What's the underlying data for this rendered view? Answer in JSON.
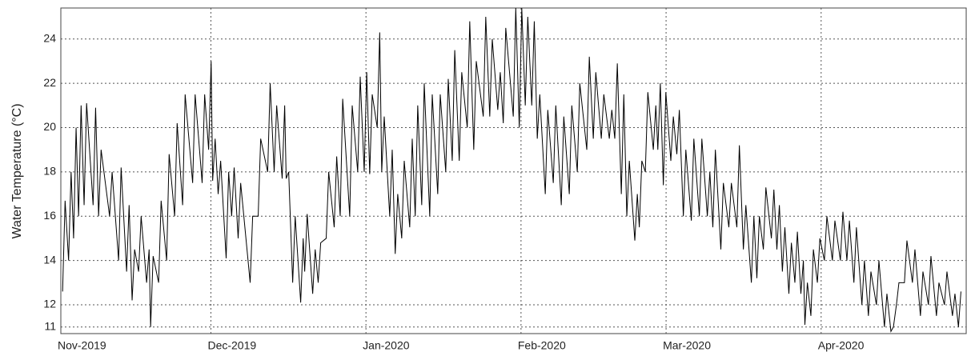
{
  "chart_data": {
    "type": "line",
    "y_label": "Water Temperature (°C)",
    "xlim": [
      0,
      181
    ],
    "xticks": [
      {
        "value": 0,
        "label": "Nov-2019"
      },
      {
        "value": 30,
        "label": "Dec-2019"
      },
      {
        "value": 61,
        "label": "Jan-2020"
      },
      {
        "value": 92,
        "label": "Feb-2020"
      },
      {
        "value": 121,
        "label": "Mar-2020"
      },
      {
        "value": 152,
        "label": "Apr-2020"
      }
    ],
    "ylim": [
      10.7,
      25.4
    ],
    "yticks": [
      11,
      12,
      14,
      16,
      18,
      20,
      22,
      24
    ],
    "grid": true,
    "x": [
      0.35,
      0.85,
      1.55,
      2.05,
      2.55,
      3.05,
      3.55,
      4.05,
      4.65,
      5.15,
      6.45,
      6.95,
      7.55,
      8.05,
      9.75,
      10.25,
      11.55,
      12.05,
      13.15,
      13.65,
      14.25,
      14.75,
      15.55,
      16.05,
      17.15,
      17.65,
      17.95,
      18.45,
      19.55,
      20.05,
      21.15,
      21.65,
      22.75,
      23.25,
      24.35,
      24.85,
      26.35,
      26.85,
      28.25,
      28.75,
      29.55,
      30.05,
      30.35,
      30.85,
      31.45,
      31.95,
      33.05,
      33.55,
      34.15,
      34.65,
      35.45,
      35.95,
      37.85,
      38.35,
      39.45,
      39.95,
      41.35,
      41.85,
      42.65,
      43.15,
      44.25,
      44.75,
      45.05,
      45.55,
      46.35,
      46.85,
      47.95,
      48.45,
      48.75,
      49.25,
      50.35,
      50.85,
      51.45,
      51.95,
      53.05,
      53.55,
      54.65,
      55.15,
      55.85,
      56.35,
      57.75,
      58.25,
      59.35,
      59.85,
      60.65,
      61.15,
      61.75,
      62.25,
      63.25,
      63.75,
      64.15,
      64.65,
      65.75,
      66.25,
      66.85,
      67.35,
      68.15,
      68.65,
      69.75,
      70.25,
      70.85,
      71.35,
      72.15,
      72.65,
      73.75,
      74.25,
      75.35,
      75.85,
      76.95,
      77.45,
      78.25,
      78.75,
      79.65,
      80.15,
      81.25,
      81.75,
      82.55,
      83.05,
      84.45,
      84.95,
      85.75,
      86.25,
      87.35,
      87.85,
      88.45,
      88.95,
      90.45,
      90.95,
      91.65,
      92.15,
      92.85,
      93.35,
      94.15,
      94.65,
      95.25,
      95.75,
      96.85,
      97.35,
      98.45,
      98.95,
      100.05,
      100.55,
      101.65,
      102.15,
      103.25,
      103.75,
      105.15,
      105.65,
      106.45,
      106.95,
      108.05,
      108.55,
      109.65,
      110.15,
      110.75,
      111.25,
      112.05,
      112.55,
      113.15,
      113.65,
      114.75,
      115.25,
      115.65,
      116.15,
      116.85,
      117.35,
      118.45,
      118.95,
      119.35,
      119.85,
      120.45,
      120.95,
      121.95,
      122.45,
      123.15,
      123.65,
      124.45,
      124.95,
      126.05,
      126.55,
      127.65,
      128.15,
      129.25,
      129.75,
      130.35,
      130.85,
      131.95,
      132.45,
      133.55,
      134.05,
      135.15,
      135.65,
      136.45,
      136.95,
      138.05,
      138.55,
      139.15,
      139.65,
      140.45,
      140.95,
      142.05,
      142.55,
      143.15,
      143.65,
      144.25,
      144.75,
      145.55,
      146.05,
      146.75,
      147.25,
      147.95,
      148.45,
      148.75,
      149.25,
      149.95,
      150.45,
      151.25,
      151.75,
      152.65,
      153.15,
      154.25,
      154.75,
      155.85,
      156.35,
      157.15,
      157.65,
      158.55,
      159.05,
      160.15,
      160.65,
      161.45,
      161.95,
      163.05,
      163.55,
      164.65,
      165.15,
      165.95,
      166.45,
      167.05,
      167.55,
      168.65,
      169.15,
      170.25,
      170.75,
      171.85,
      172.35,
      173.45,
      173.95,
      175.05,
      175.55,
      176.65,
      177.15,
      178.25,
      178.75,
      179.45,
      179.95
    ],
    "series": [
      {
        "color": "#000000",
        "values": [
          12.6,
          16.7,
          14,
          18,
          15,
          20,
          16,
          21,
          16.5,
          21.1,
          16.5,
          20.9,
          16,
          19,
          16,
          18,
          14,
          18.2,
          13.5,
          16.5,
          12.2,
          14.5,
          13.5,
          16,
          13,
          14.5,
          11,
          14.2,
          13,
          16.7,
          14,
          18.8,
          16,
          20.2,
          16.5,
          21.5,
          17.5,
          21.5,
          17.5,
          21.5,
          19,
          23,
          17.6,
          19.5,
          17,
          18.5,
          14.1,
          18,
          16,
          18.2,
          15,
          17.5,
          13,
          16,
          16,
          19.5,
          18,
          22,
          18,
          21,
          17.7,
          21,
          17.7,
          18,
          13,
          16,
          12.1,
          15,
          13.5,
          16.1,
          12.5,
          14.5,
          13,
          14.8,
          15,
          18,
          15.5,
          18.7,
          16,
          21.3,
          16,
          21,
          18,
          22.3,
          18,
          22.5,
          17.9,
          21.5,
          20,
          24.3,
          18,
          20.5,
          16,
          19,
          14.3,
          17,
          15,
          18.5,
          15.5,
          19.5,
          16,
          21,
          16.5,
          22,
          16,
          21.5,
          17,
          21.5,
          18,
          22.2,
          18.5,
          23.5,
          18.5,
          22.5,
          20,
          24.8,
          19,
          23,
          20.5,
          25,
          20.5,
          24,
          20.8,
          22.5,
          20.2,
          24.5,
          20.5,
          25.4,
          20,
          25.4,
          21,
          25,
          21,
          24.8,
          19.5,
          21.5,
          17,
          20.8,
          17.5,
          21,
          16.5,
          20.5,
          17,
          21,
          18,
          22,
          19,
          23.2,
          19.5,
          22.5,
          19.5,
          21.5,
          19.5,
          20.8,
          19.5,
          22.9,
          17,
          21.5,
          16,
          18.5,
          14.9,
          17,
          15.5,
          18.5,
          18,
          21.6,
          19,
          21,
          19,
          22,
          17.4,
          21.6,
          18.5,
          20.5,
          18.8,
          20.8,
          16,
          19,
          15.8,
          19.5,
          16,
          19.5,
          16,
          18,
          15.5,
          19,
          14.5,
          17.5,
          15.5,
          17.5,
          15.5,
          19.2,
          14.5,
          16.5,
          13,
          16,
          13.2,
          16,
          14.5,
          17.3,
          15,
          17.2,
          14.5,
          16.5,
          13.5,
          15.5,
          12.5,
          14.8,
          13,
          15.3,
          12.5,
          14,
          11.1,
          13,
          11.5,
          14.5,
          13,
          15,
          14,
          16,
          14,
          15.8,
          14,
          16.2,
          14,
          15.8,
          13,
          15.5,
          12,
          14,
          11.5,
          13.5,
          12,
          14,
          11,
          12.5,
          10.8,
          11,
          12,
          13,
          13,
          14.9,
          13,
          14.5,
          11.5,
          13.5,
          12,
          14.2,
          11.5,
          13,
          12,
          13.5,
          11.5,
          12.5,
          11,
          12.6
        ]
      }
    ]
  }
}
